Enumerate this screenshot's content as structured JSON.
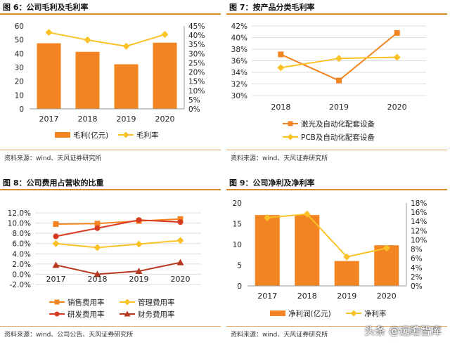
{
  "panels": [
    {
      "title": "图 6：公司毛利及毛利率",
      "source": "资料来源：wind、天风证券研究所"
    },
    {
      "title": "图 7：按产品分类毛利率",
      "source": "资料来源：wind、天风证券研究所"
    },
    {
      "title": "图 8：公司费用占营收的比重",
      "source": "资料来源：wind、公司公告、天风证券研究所"
    },
    {
      "title": "图 9：公司净利及净利率",
      "source": "资料来源：wind、天风证券研究所"
    }
  ],
  "watermark": "头条 @远瞻智库",
  "colors": {
    "orange": "#f28522",
    "yellow": "#fbc227",
    "red": "#d83a22",
    "darkred": "#b6391f",
    "title_line": "#d98a28"
  },
  "chart_data": [
    {
      "type": "bar",
      "categories": [
        "2017",
        "2018",
        "2019",
        "2020"
      ],
      "series": [
        {
          "name": "毛利(亿元)",
          "type": "bar",
          "axis": "left",
          "color": "#f28522",
          "values": [
            47.5,
            41.3,
            32.3,
            47.9
          ]
        },
        {
          "name": "毛利率",
          "type": "line",
          "marker": "diamond",
          "axis": "right",
          "color": "#fbc227",
          "values": [
            41.5,
            37.4,
            34.0,
            40.4
          ]
        }
      ],
      "y_left": {
        "min": 0,
        "max": 60,
        "step": 10,
        "ticks": [
          "0",
          "10",
          "20",
          "30",
          "40",
          "50",
          "60"
        ]
      },
      "y_right": {
        "min": 0,
        "max": 45,
        "step": 5,
        "ticks": [
          "0%",
          "5%",
          "10%",
          "15%",
          "20%",
          "25%",
          "30%",
          "35%",
          "40%",
          "45%"
        ]
      },
      "legend_position": "bottom"
    },
    {
      "type": "line",
      "categories": [
        "2018",
        "2019",
        "2020"
      ],
      "series": [
        {
          "name": "激光及自动化配套设备",
          "marker": "square",
          "color": "#f28522",
          "values": [
            37.1,
            32.6,
            40.8
          ]
        },
        {
          "name": "PCB及自动化配套设备",
          "marker": "diamond",
          "color": "#fbc227",
          "values": [
            34.8,
            36.4,
            36.6
          ]
        }
      ],
      "y": {
        "min": 30,
        "max": 42,
        "step": 2,
        "ticks": [
          "30%",
          "32%",
          "34%",
          "36%",
          "38%",
          "40%",
          "42%"
        ]
      },
      "grid": true,
      "legend_position": "bottom"
    },
    {
      "type": "line",
      "categories": [
        "2017",
        "2018",
        "2019",
        "2020"
      ],
      "series": [
        {
          "name": "销售费用率",
          "marker": "square",
          "color": "#f28522",
          "values": [
            9.8,
            9.9,
            10.4,
            10.8
          ]
        },
        {
          "name": "管理费用率",
          "marker": "diamond",
          "color": "#fbc227",
          "values": [
            6.0,
            5.2,
            5.9,
            6.6
          ]
        },
        {
          "name": "研发费用率",
          "marker": "circle",
          "color": "#d83a22",
          "values": [
            7.4,
            9.0,
            10.6,
            10.2
          ]
        },
        {
          "name": "财务费用率",
          "marker": "triangle",
          "color": "#b6391f",
          "values": [
            1.8,
            0.0,
            0.6,
            2.3
          ]
        }
      ],
      "y": {
        "min": -2,
        "max": 12,
        "step": 2,
        "ticks": [
          "-2.0%",
          "0.0%",
          "2.0%",
          "4.0%",
          "6.0%",
          "8.0%",
          "10.0%",
          "12.0%"
        ]
      },
      "grid": true,
      "legend_position": "bottom"
    },
    {
      "type": "bar",
      "categories": [
        "2017",
        "2018",
        "2019",
        "2020"
      ],
      "series": [
        {
          "name": "净利润(亿元)",
          "type": "bar",
          "axis": "left",
          "color": "#f28522",
          "values": [
            17.1,
            17.1,
            6.0,
            9.8
          ]
        },
        {
          "name": "净利率",
          "type": "line",
          "marker": "diamond",
          "axis": "right",
          "color": "#fbc227",
          "values": [
            14.8,
            15.6,
            6.3,
            8.2
          ]
        }
      ],
      "y_left": {
        "min": 0,
        "max": 20,
        "step": 5,
        "ticks": [
          "0",
          "5",
          "10",
          "15",
          "20"
        ]
      },
      "y_right": {
        "min": 0,
        "max": 18,
        "step": 2,
        "ticks": [
          "0%",
          "2%",
          "4%",
          "6%",
          "8%",
          "10%",
          "12%",
          "14%",
          "16%",
          "18%"
        ]
      },
      "legend_position": "bottom"
    }
  ]
}
